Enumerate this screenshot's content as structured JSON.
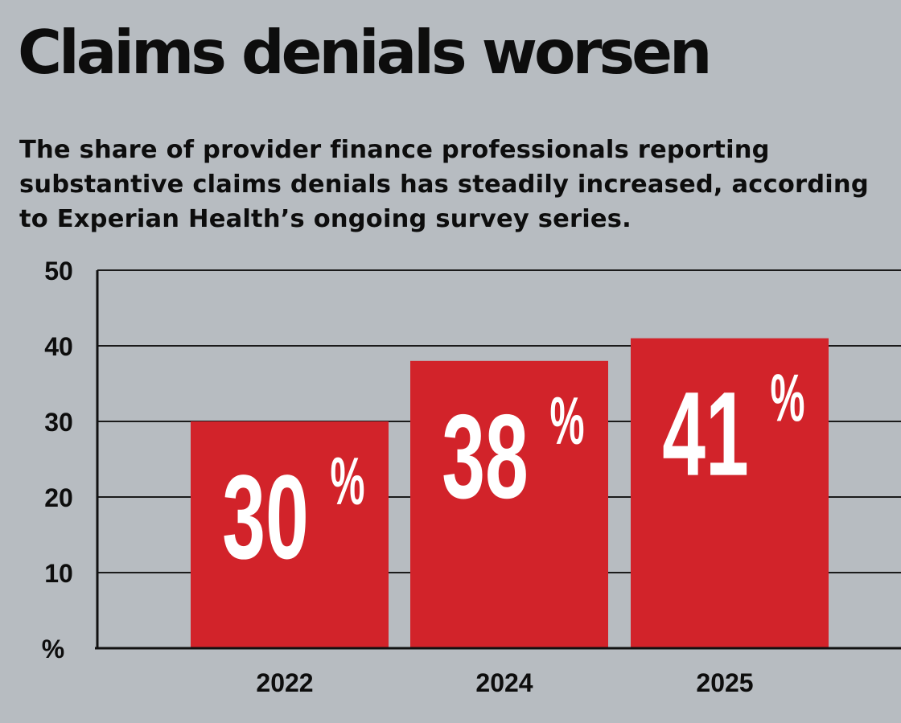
{
  "header": {
    "title": "Claims denials worsen",
    "subtitle": "The share of provider finance professionals reporting substantive claims denials has steadily increased, according to Experian Health’s ongoing survey series."
  },
  "colors": {
    "background": "#b7bcc1",
    "bar": "#d2232a",
    "bar_label": "#ffffff",
    "text": "#0d0d0d"
  },
  "chart_data": {
    "type": "bar",
    "categories": [
      "2022",
      "2024",
      "2025"
    ],
    "values": [
      30,
      38,
      41
    ],
    "data_labels": [
      "30",
      "38",
      "41"
    ],
    "data_label_suffix": "%",
    "title": "Claims denials worsen",
    "subtitle": "The share of provider finance professionals reporting substantive claims denials has steadily increased, according to Experian Health’s ongoing survey series.",
    "xlabel": "",
    "ylabel": "%",
    "ylim": [
      0,
      50
    ],
    "yticks": [
      "10",
      "20",
      "30",
      "40",
      "50"
    ],
    "grid": true,
    "legend": "none"
  }
}
